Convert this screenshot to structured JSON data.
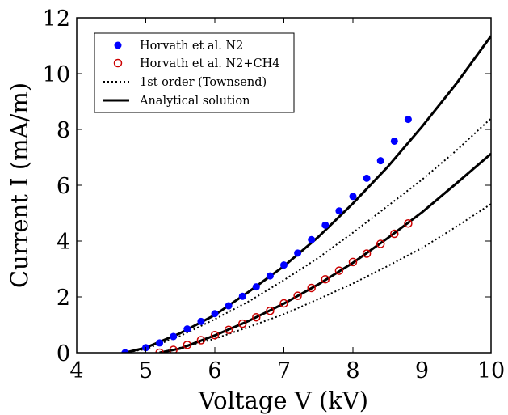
{
  "chart_data": {
    "type": "scatter",
    "xlabel": "Voltage V (kV)",
    "ylabel": "Current I (mA/m)",
    "xlim": [
      4,
      10
    ],
    "ylim": [
      0,
      12
    ],
    "xticks": [
      "4",
      "5",
      "6",
      "7",
      "8",
      "9",
      "10"
    ],
    "yticks": [
      "0",
      "2",
      "4",
      "6",
      "8",
      "10",
      "12"
    ],
    "grid": false,
    "legend_position": "upper-left",
    "series": [
      {
        "name": "Horvath et al. N2",
        "kind": "scatter",
        "marker": "filled-circle",
        "color": "#0000ff",
        "x": [
          4.7,
          5.0,
          5.2,
          5.4,
          5.6,
          5.8,
          6.0,
          6.2,
          6.4,
          6.6,
          6.8,
          7.0,
          7.2,
          7.4,
          7.6,
          7.8,
          8.0,
          8.2,
          8.4,
          8.6,
          8.8
        ],
        "y": [
          0.0,
          0.18,
          0.35,
          0.58,
          0.85,
          1.12,
          1.4,
          1.68,
          2.02,
          2.36,
          2.75,
          3.14,
          3.57,
          4.05,
          4.57,
          5.08,
          5.6,
          6.25,
          6.88,
          7.58,
          8.36
        ]
      },
      {
        "name": "Horvath et al. N2+CH4",
        "kind": "scatter",
        "marker": "open-circle",
        "color": "#cc0000",
        "x": [
          5.2,
          5.4,
          5.6,
          5.8,
          6.0,
          6.2,
          6.4,
          6.6,
          6.8,
          7.0,
          7.2,
          7.4,
          7.6,
          7.8,
          8.0,
          8.2,
          8.4,
          8.6,
          8.8
        ],
        "y": [
          0.0,
          0.1,
          0.28,
          0.45,
          0.63,
          0.82,
          1.04,
          1.27,
          1.5,
          1.77,
          2.04,
          2.32,
          2.63,
          2.94,
          3.25,
          3.55,
          3.9,
          4.26,
          4.63
        ]
      },
      {
        "name": "1st order (Townsend)",
        "kind": "line",
        "style": "dotted",
        "color": "#000000",
        "segments": [
          {
            "x": [
              4.7,
              5.0,
              5.5,
              6.0,
              6.5,
              7.0,
              7.5,
              8.0,
              8.5,
              9.0,
              9.5,
              10.0
            ],
            "y": [
              0.0,
              0.13,
              0.6,
              1.2,
              1.85,
              2.6,
              3.4,
              4.3,
              5.25,
              6.2,
              7.25,
              8.4
            ]
          },
          {
            "x": [
              5.2,
              5.5,
              6.0,
              6.5,
              7.0,
              7.5,
              8.0,
              8.5,
              9.0,
              9.5,
              10.0
            ],
            "y": [
              0.0,
              0.18,
              0.5,
              0.93,
              1.38,
              1.92,
              2.48,
              3.1,
              3.75,
              4.52,
              5.33
            ]
          }
        ]
      },
      {
        "name": "Analytical solution",
        "kind": "line",
        "style": "solid",
        "color": "#000000",
        "segments": [
          {
            "x": [
              4.7,
              5.0,
              5.5,
              6.0,
              6.5,
              7.0,
              7.5,
              8.0,
              8.5,
              9.0,
              9.5,
              10.0
            ],
            "y": [
              0.0,
              0.18,
              0.7,
              1.35,
              2.2,
              3.1,
              4.15,
              5.35,
              6.65,
              8.1,
              9.65,
              11.35
            ]
          },
          {
            "x": [
              5.2,
              5.5,
              6.0,
              6.5,
              7.0,
              7.5,
              8.0,
              8.5,
              9.0,
              9.5,
              10.0
            ],
            "y": [
              0.0,
              0.15,
              0.62,
              1.15,
              1.76,
              2.45,
              3.22,
              4.1,
              5.03,
              6.07,
              7.13
            ]
          }
        ]
      }
    ]
  }
}
